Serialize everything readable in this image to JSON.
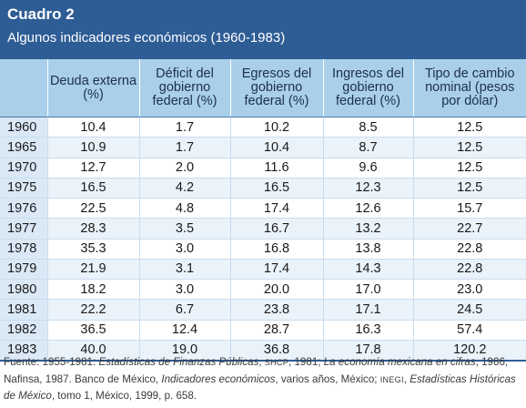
{
  "header": {
    "title": "Cuadro 2",
    "subtitle": "Algunos indicadores económicos (1960-1983)"
  },
  "table": {
    "columns": [
      "",
      "Deuda externa (%)",
      "Déficit del gobierno federal (%)",
      "Egresos del gobierno federal (%)",
      "Ingresos del gobierno federal (%)",
      "Tipo de cambio nominal (pesos por dólar)"
    ],
    "rows": [
      [
        "1960",
        "10.4",
        "1.7",
        "10.2",
        "8.5",
        "12.5"
      ],
      [
        "1965",
        "10.9",
        "1.7",
        "10.4",
        "8.7",
        "12.5"
      ],
      [
        "1970",
        "12.7",
        "2.0",
        "11.6",
        "9.6",
        "12.5"
      ],
      [
        "1975",
        "16.5",
        "4.2",
        "16.5",
        "12.3",
        "12.5"
      ],
      [
        "1976",
        "22.5",
        "4.8",
        "17.4",
        "12.6",
        "15.7"
      ],
      [
        "1977",
        "28.3",
        "3.5",
        "16.7",
        "13.2",
        "22.7"
      ],
      [
        "1978",
        "35.3",
        "3.0",
        "16.8",
        "13.8",
        "22.8"
      ],
      [
        "1979",
        "21.9",
        "3.1",
        "17.4",
        "14.3",
        "22.8"
      ],
      [
        "1980",
        "18.2",
        "3.0",
        "20.0",
        "17.0",
        "23.0"
      ],
      [
        "1981",
        "22.2",
        "6.7",
        "23.8",
        "17.1",
        "24.5"
      ],
      [
        "1982",
        "36.5",
        "12.4",
        "28.7",
        "16.3",
        "57.4"
      ],
      [
        "1983",
        "40.0",
        "19.0",
        "36.8",
        "17.8",
        "120.2"
      ]
    ]
  },
  "source": {
    "label": "Fuente:",
    "p1": " 1955-1981: ",
    "t1": "Estadísticas de Finanzas Públicas",
    "p2": ", ",
    "sc1": "SHCP",
    "p3": ", 1981; ",
    "t2": "La economía mexicana en cifras",
    "p4": ", 1986, Nafinsa, 1987. Banco de México, ",
    "t3": "Indicadores económicos",
    "p5": ", varios años, México; ",
    "sc2": "INEGI",
    "p6": ", ",
    "t4": "Estadísticas Históricas de México",
    "p7": ", tomo 1, México, 1999, p. 658."
  },
  "colors": {
    "header_bg": "#2e5d96",
    "column_header_bg": "#a9cfea",
    "stripe": "#eaf2fa",
    "year_column_bg": "#dbe9f6"
  }
}
